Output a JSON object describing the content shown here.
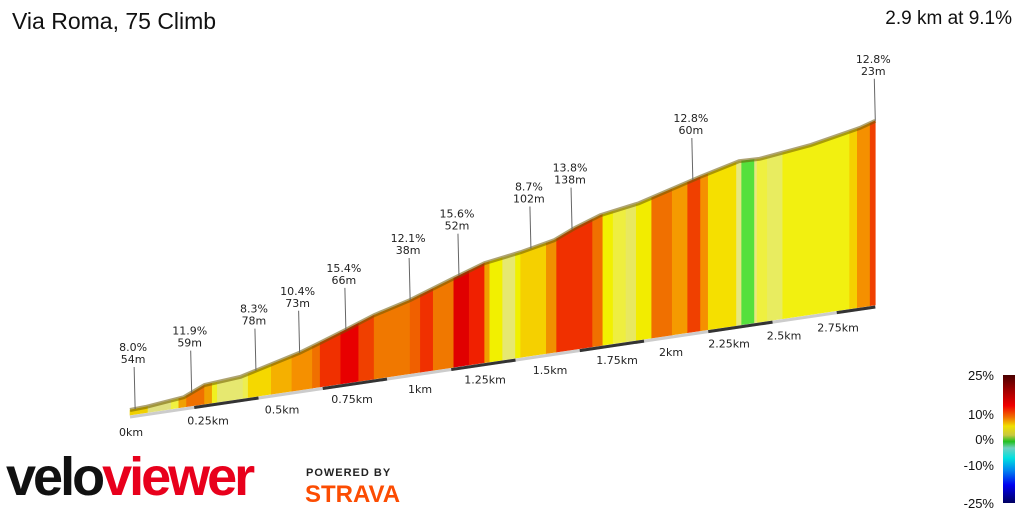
{
  "title": "Via Roma, 75 Climb",
  "summary": "2.9 km at 9.1%",
  "chart_data": {
    "type": "area",
    "title": "Via Roma, 75 Climb",
    "xlabel": "",
    "ylabel": "",
    "xlim_km": [
      0,
      2.9
    ],
    "x_ticks": [
      "0km",
      "0.25km",
      "0.5km",
      "0.75km",
      "1km",
      "1.25km",
      "1.5km",
      "1.75km",
      "2km",
      "2.25km",
      "2.5km",
      "2.75km"
    ],
    "profile": [
      [
        0,
        0
      ],
      [
        0.06,
        1
      ],
      [
        0.21,
        7
      ],
      [
        0.29,
        20
      ],
      [
        0.43,
        24
      ],
      [
        0.66,
        46
      ],
      [
        0.74,
        56
      ],
      [
        0.84,
        69
      ],
      [
        0.95,
        84
      ],
      [
        1.09,
        98
      ],
      [
        1.26,
        120
      ],
      [
        1.38,
        135
      ],
      [
        1.52,
        143
      ],
      [
        1.65,
        153
      ],
      [
        1.73,
        166
      ],
      [
        1.83,
        179
      ],
      [
        1.98,
        188
      ],
      [
        2.22,
        213
      ],
      [
        2.37,
        227
      ],
      [
        2.45,
        226
      ],
      [
        2.65,
        235
      ],
      [
        2.84,
        249
      ],
      [
        2.9,
        256
      ]
    ],
    "segments": [
      [
        0.0,
        "#f0d000"
      ],
      [
        0.07,
        "#e0e080"
      ],
      [
        0.16,
        "#f0f040"
      ],
      [
        0.19,
        "#f0a000"
      ],
      [
        0.22,
        "#f07000"
      ],
      [
        0.29,
        "#f0a000"
      ],
      [
        0.32,
        "#f0f020"
      ],
      [
        0.34,
        "#e6e870"
      ],
      [
        0.44,
        "#eeee50"
      ],
      [
        0.46,
        "#f5d800"
      ],
      [
        0.55,
        "#f5b000"
      ],
      [
        0.63,
        "#f59000"
      ],
      [
        0.71,
        "#f07000"
      ],
      [
        0.74,
        "#f03000"
      ],
      [
        0.82,
        "#e80000"
      ],
      [
        0.89,
        "#f04000"
      ],
      [
        0.95,
        "#f07800"
      ],
      [
        1.09,
        "#f06000"
      ],
      [
        1.13,
        "#f03000"
      ],
      [
        1.18,
        "#f07800"
      ],
      [
        1.26,
        "#e00000"
      ],
      [
        1.32,
        "#f02000"
      ],
      [
        1.38,
        "#f0a000"
      ],
      [
        1.4,
        "#f2f000"
      ],
      [
        1.45,
        "#e6e870"
      ],
      [
        1.5,
        "#f0f000"
      ],
      [
        1.52,
        "#f5d000"
      ],
      [
        1.62,
        "#f09000"
      ],
      [
        1.66,
        "#f03000"
      ],
      [
        1.8,
        "#f07000"
      ],
      [
        1.84,
        "#f2f000"
      ],
      [
        1.88,
        "#eeee40"
      ],
      [
        1.93,
        "#e8e860"
      ],
      [
        1.97,
        "#f2ec00"
      ],
      [
        2.03,
        "#f07000"
      ],
      [
        2.11,
        "#f59a00"
      ],
      [
        2.17,
        "#f04000"
      ],
      [
        2.22,
        "#f59000"
      ],
      [
        2.25,
        "#f5e000"
      ],
      [
        2.36,
        "#e6e880"
      ],
      [
        2.38,
        "#55e03c"
      ],
      [
        2.43,
        "#e6e880"
      ],
      [
        2.44,
        "#eef040"
      ],
      [
        2.48,
        "#e8ec60"
      ],
      [
        2.54,
        "#f2f010"
      ],
      [
        2.8,
        "#f5d000"
      ],
      [
        2.83,
        "#f59000"
      ],
      [
        2.88,
        "#f04000"
      ]
    ],
    "markers": [
      {
        "km": 0.02,
        "grade": "8.0%",
        "length": "54m"
      },
      {
        "km": 0.24,
        "grade": "11.9%",
        "length": "59m"
      },
      {
        "km": 0.49,
        "grade": "8.3%",
        "length": "78m"
      },
      {
        "km": 0.66,
        "grade": "10.4%",
        "length": "73m"
      },
      {
        "km": 0.84,
        "grade": "15.4%",
        "length": "66m"
      },
      {
        "km": 1.09,
        "grade": "12.1%",
        "length": "38m"
      },
      {
        "km": 1.28,
        "grade": "15.6%",
        "length": "52m"
      },
      {
        "km": 1.56,
        "grade": "8.7%",
        "length": "102m"
      },
      {
        "km": 1.72,
        "grade": "13.8%",
        "length": "138m"
      },
      {
        "km": 2.19,
        "grade": "12.8%",
        "length": "60m"
      },
      {
        "km": 2.9,
        "grade": "12.8%",
        "length": "23m"
      }
    ],
    "legend": {
      "labels": [
        "25%",
        "10%",
        "0%",
        "-10%",
        "-25%"
      ]
    }
  },
  "branding": {
    "logo_a": "velo",
    "logo_b": "viewer",
    "powered": "POWERED BY",
    "strava": "STRAVA"
  }
}
